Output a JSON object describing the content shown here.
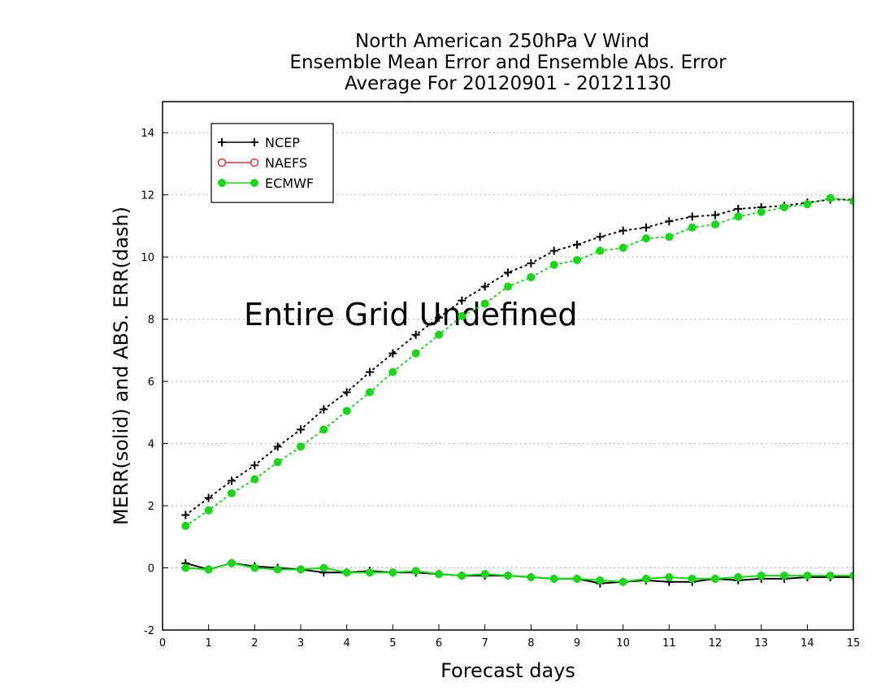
{
  "chart_data": {
    "type": "line",
    "title": [
      "North American 250hPa V Wind",
      "Ensemble Mean Error and Ensemble Abs. Error",
      "Average For 20120901 - 20121130"
    ],
    "xlabel": "Forecast days",
    "ylabel": "MERR(solid) and ABS. ERR(dash)",
    "xlim": [
      0,
      15
    ],
    "ylim": [
      -2,
      15
    ],
    "xticks": [
      "0",
      "1",
      "2",
      "3",
      "4",
      "5",
      "6",
      "7",
      "8",
      "9",
      "10",
      "11",
      "12",
      "13",
      "14",
      "15"
    ],
    "yticks": [
      "-2",
      "0",
      "2",
      "4",
      "6",
      "8",
      "10",
      "12",
      "14"
    ],
    "grid": "horizontal dotted",
    "legend_position": "top-left",
    "annotation": "Entire Grid Undefined",
    "x": [
      0.5,
      1,
      1.5,
      2,
      2.5,
      3,
      3.5,
      4,
      4.5,
      5,
      5.5,
      6,
      6.5,
      7,
      7.5,
      8,
      8.5,
      9,
      9.5,
      10,
      10.5,
      11,
      11.5,
      12,
      12.5,
      13,
      13.5,
      14,
      14.5,
      15
    ],
    "series": [
      {
        "name": "NCEP",
        "metric": "abs_err",
        "line": "dotted",
        "color": "#000000",
        "marker": "plus",
        "values": [
          1.7,
          2.25,
          2.8,
          3.3,
          3.9,
          4.45,
          5.1,
          5.65,
          6.3,
          6.9,
          7.5,
          8.05,
          8.6,
          9.05,
          9.5,
          9.8,
          10.2,
          10.4,
          10.65,
          10.85,
          10.95,
          11.15,
          11.3,
          11.35,
          11.55,
          11.6,
          11.65,
          11.75,
          11.85,
          11.85
        ]
      },
      {
        "name": "ECMWF",
        "metric": "abs_err",
        "line": "dotted",
        "color": "#16d916",
        "marker": "dot",
        "values": [
          1.35,
          1.85,
          2.4,
          2.85,
          3.4,
          3.9,
          4.45,
          5.05,
          5.65,
          6.3,
          6.9,
          7.5,
          8.1,
          8.5,
          9.05,
          9.35,
          9.75,
          9.9,
          10.2,
          10.3,
          10.6,
          10.65,
          10.95,
          11.05,
          11.3,
          11.45,
          11.6,
          11.7,
          11.9,
          11.8
        ]
      },
      {
        "name": "NCEP",
        "metric": "mean_err",
        "line": "solid",
        "color": "#000000",
        "marker": "plus",
        "values": [
          0.15,
          -0.05,
          0.15,
          0.05,
          0.0,
          -0.05,
          -0.15,
          -0.15,
          -0.1,
          -0.15,
          -0.15,
          -0.2,
          -0.25,
          -0.25,
          -0.25,
          -0.3,
          -0.35,
          -0.35,
          -0.5,
          -0.45,
          -0.4,
          -0.45,
          -0.45,
          -0.35,
          -0.4,
          -0.35,
          -0.35,
          -0.3,
          -0.3,
          -0.3
        ]
      },
      {
        "name": "ECMWF",
        "metric": "mean_err",
        "line": "solid",
        "color": "#16d916",
        "marker": "dot",
        "values": [
          0.0,
          -0.05,
          0.15,
          0.0,
          -0.05,
          -0.05,
          0.0,
          -0.15,
          -0.15,
          -0.15,
          -0.1,
          -0.2,
          -0.25,
          -0.2,
          -0.25,
          -0.3,
          -0.35,
          -0.35,
          -0.4,
          -0.45,
          -0.35,
          -0.3,
          -0.35,
          -0.35,
          -0.3,
          -0.25,
          -0.25,
          -0.25,
          -0.25,
          -0.25
        ]
      }
    ],
    "legend": [
      {
        "label": "NCEP",
        "color": "#000000",
        "marker": "plus"
      },
      {
        "label": "NAEFS",
        "color": "#e8343c",
        "marker": "circle-open"
      },
      {
        "label": "ECMWF",
        "color": "#16d916",
        "marker": "dot"
      }
    ]
  }
}
